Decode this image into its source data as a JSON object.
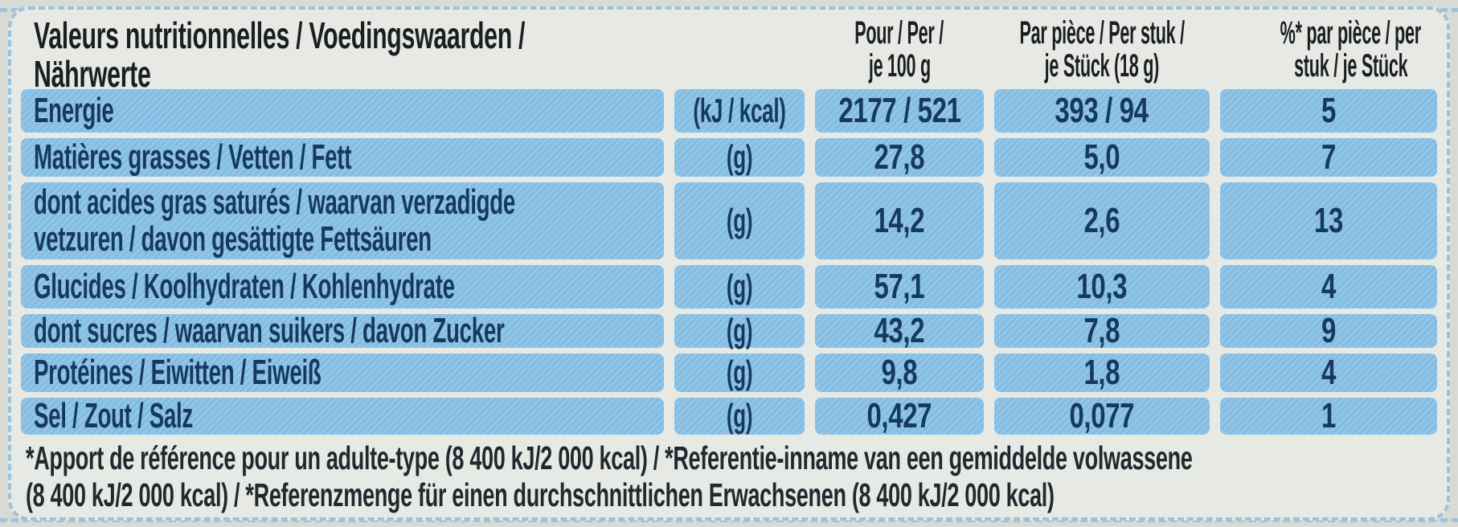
{
  "table": {
    "title": {
      "line1": "Valeurs nutritionnelles / Voedingswaarden /",
      "line2": "Nährwerte"
    },
    "columns": [
      {
        "name": "per-100g",
        "line1": "Pour / Per /",
        "line2": "je 100 g"
      },
      {
        "name": "per-piece",
        "line1": "Par pièce / Per stuk /",
        "line2": "je Stück (18 g)"
      },
      {
        "name": "percent",
        "line1": "%* par pièce / per",
        "line2": "stuk / je Stück"
      }
    ],
    "rows": [
      {
        "label": "Energie",
        "unit": "(kJ / kcal)",
        "per100": "2177 / 521",
        "piece": "393 / 94",
        "pct": "5"
      },
      {
        "label": "Matières grasses / Vetten / Fett",
        "unit": "(g)",
        "per100": "27,8",
        "piece": "5,0",
        "pct": "7"
      },
      {
        "label": "dont acides gras saturés / waarvan verzadigde",
        "label2": "vetzuren / davon gesättigte Fettsäuren",
        "unit": "(g)",
        "per100": "14,2",
        "piece": "2,6",
        "pct": "13"
      },
      {
        "label": "Glucides / Koolhydraten / Kohlenhydrate",
        "unit": "(g)",
        "per100": "57,1",
        "piece": "10,3",
        "pct": "4"
      },
      {
        "label": "dont sucres / waarvan suikers / davon Zucker",
        "unit": "(g)",
        "per100": "43,2",
        "piece": "7,8",
        "pct": "9"
      },
      {
        "label": "Protéines / Eiwitten / Eiweiß",
        "unit": "(g)",
        "per100": "9,8",
        "piece": "1,8",
        "pct": "4"
      },
      {
        "label": "Sel / Zout / Salz",
        "unit": "(g)",
        "per100": "0,427",
        "piece": "0,077",
        "pct": "1"
      }
    ],
    "footnote": {
      "line1": "*Apport de référence pour un adulte-type (8 400 kJ/2 000 kcal) / *Referentie-inname van een gemiddelde volwassene",
      "line2": "(8 400 kJ/2 000 kcal) / *Referenzmenge für einen durchschnittlichen Erwachsenen (8 400 kJ/2 000 kcal)"
    }
  },
  "colors": {
    "outer_bg": "#d7dad5",
    "card_bg": "#e7e9e4",
    "cell_blue": "#86bfe6",
    "stitch": "#9cc2dc",
    "header_text": "#1b1f22",
    "text_navy": "#16395e",
    "footer_text": "#20292e"
  }
}
